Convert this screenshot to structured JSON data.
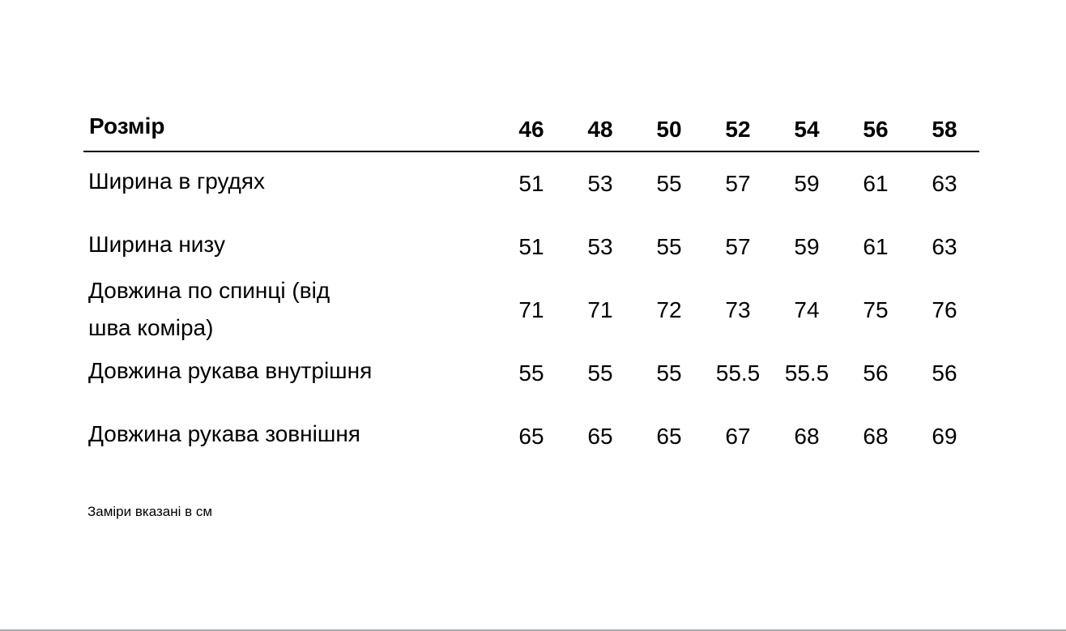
{
  "table": {
    "header_label": "Розмір",
    "sizes": [
      "46",
      "48",
      "50",
      "52",
      "54",
      "56",
      "58"
    ],
    "rows": [
      {
        "label": "Ширина в грудях",
        "values": [
          "51",
          "53",
          "55",
          "57",
          "59",
          "61",
          "63"
        ]
      },
      {
        "label": "Ширина низу",
        "values": [
          "51",
          "53",
          "55",
          "57",
          "59",
          "61",
          "63"
        ]
      },
      {
        "label_lines": [
          "Довжина по спинці (від",
          "шва коміра)"
        ],
        "values": [
          "71",
          "71",
          "72",
          "73",
          "74",
          "75",
          "76"
        ]
      },
      {
        "label": "Довжина рукава внутрішня",
        "values": [
          "55",
          "55",
          "55",
          "55.5",
          "55.5",
          "56",
          "56"
        ]
      },
      {
        "label": "Довжина рукава зовнішня",
        "values": [
          "65",
          "65",
          "65",
          "67",
          "68",
          "68",
          "69"
        ]
      }
    ]
  },
  "note": "Заміри вказані в см"
}
